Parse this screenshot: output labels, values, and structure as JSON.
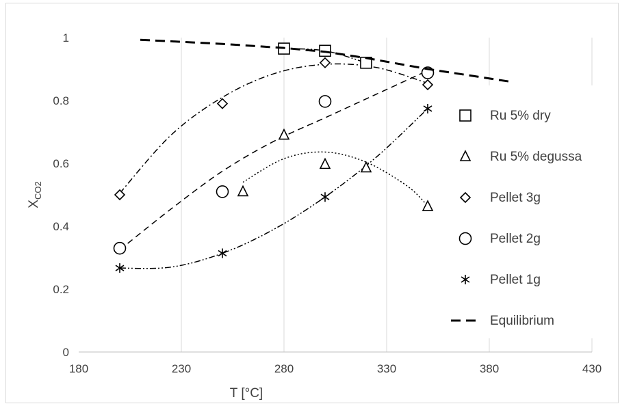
{
  "chart_data": {
    "type": "scatter",
    "title": "",
    "xlabel": "T [°C]",
    "ylabel": "X",
    "ylabel_sub": "CO2",
    "xlim": [
      180,
      430
    ],
    "ylim": [
      0,
      1
    ],
    "x_ticks": [
      180,
      230,
      280,
      330,
      380,
      430
    ],
    "y_ticks": [
      0,
      0.2,
      0.4,
      0.6,
      0.8,
      1
    ],
    "x_tick_labels": [
      "180",
      "230",
      "280",
      "330",
      "380",
      "430"
    ],
    "y_tick_labels": [
      "0",
      "0.2",
      "0.4",
      "0.6",
      "0.8",
      "1"
    ],
    "grid": "vertical",
    "legend_position": "right",
    "series": [
      {
        "name": "Ru 5% dry",
        "marker": "square",
        "x": [
          280,
          300,
          320
        ],
        "y": [
          0.965,
          0.958,
          0.92
        ]
      },
      {
        "name": "Ru 5% degussa",
        "marker": "triangle",
        "x": [
          260,
          280,
          300,
          320,
          350
        ],
        "y": [
          0.51,
          0.69,
          0.597,
          0.586,
          0.463
        ]
      },
      {
        "name": "Pellet 3g",
        "marker": "diamond",
        "x": [
          200,
          250,
          300,
          350
        ],
        "y": [
          0.5,
          0.79,
          0.92,
          0.85
        ]
      },
      {
        "name": "Pellet 2g",
        "marker": "circle",
        "x": [
          200,
          250,
          300,
          350
        ],
        "y": [
          0.33,
          0.51,
          0.797,
          0.888
        ]
      },
      {
        "name": "Pellet 1g",
        "marker": "asterisk",
        "x": [
          200,
          250,
          300,
          350
        ],
        "y": [
          0.267,
          0.314,
          0.493,
          0.774
        ]
      },
      {
        "name": "Equilibrium",
        "marker": "none",
        "line": "dash",
        "x": [
          210,
          250,
          280,
          300,
          320,
          350,
          390
        ],
        "y": [
          0.993,
          0.98,
          0.967,
          0.955,
          0.935,
          0.9,
          0.86
        ]
      }
    ],
    "trend_lines": [
      {
        "for": "Ru 5% dry",
        "style": "dash-dot-dot",
        "x": [
          280,
          300,
          320
        ],
        "y": [
          0.965,
          0.958,
          0.92
        ]
      },
      {
        "for": "Ru 5% degussa",
        "style": "dot",
        "x": [
          260,
          280,
          300,
          320,
          340,
          350
        ],
        "y": [
          0.54,
          0.615,
          0.636,
          0.604,
          0.528,
          0.465
        ]
      },
      {
        "for": "Pellet 3g",
        "style": "dash-dot",
        "x": [
          200,
          225,
          250,
          275,
          300,
          325,
          350
        ],
        "y": [
          0.505,
          0.69,
          0.81,
          0.885,
          0.915,
          0.905,
          0.855
        ]
      },
      {
        "for": "Pellet 2g",
        "style": "dash",
        "x": [
          200,
          225,
          250,
          275,
          300,
          325,
          350
        ],
        "y": [
          0.325,
          0.455,
          0.575,
          0.67,
          0.745,
          0.82,
          0.895
        ]
      },
      {
        "for": "Pellet 1g",
        "style": "dash-dot-dot",
        "x": [
          200,
          225,
          250,
          275,
          300,
          325,
          350
        ],
        "y": [
          0.267,
          0.27,
          0.314,
          0.39,
          0.493,
          0.62,
          0.774
        ]
      }
    ]
  }
}
